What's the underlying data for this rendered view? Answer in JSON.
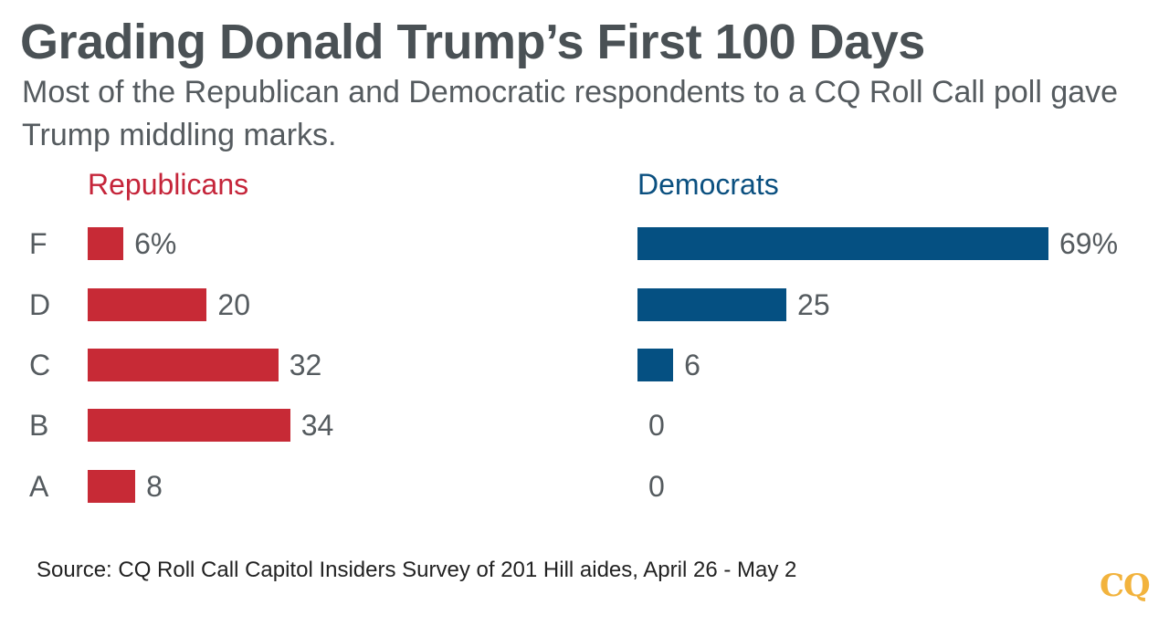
{
  "title": "Grading Donald Trump’s First 100 Days",
  "subtitle": "Most of the Republican and Democratic respondents to a CQ Roll Call poll gave Trump middling marks.",
  "source": "Source: CQ Roll Call Capitol Insiders Survey of 201 Hill aides, April 26 - May 2",
  "logo": "CQ",
  "colors": {
    "republicans": "#c72a36",
    "democrats": "#055082",
    "text": "#555b5f",
    "logo": "#f2b33d"
  },
  "chart_data": {
    "type": "bar",
    "orientation": "horizontal",
    "title": "Grading Donald Trump’s First 100 Days",
    "categories": [
      "F",
      "D",
      "C",
      "B",
      "A"
    ],
    "unit": "%",
    "xlim": [
      0,
      69
    ],
    "series": [
      {
        "name": "Republicans",
        "values": [
          6,
          20,
          32,
          34,
          8
        ],
        "labels": [
          "6%",
          "20",
          "32",
          "34",
          "8"
        ]
      },
      {
        "name": "Democrats",
        "values": [
          69,
          25,
          6,
          0,
          0
        ],
        "labels": [
          "69%",
          "25",
          "6",
          "0",
          "0"
        ]
      }
    ]
  }
}
